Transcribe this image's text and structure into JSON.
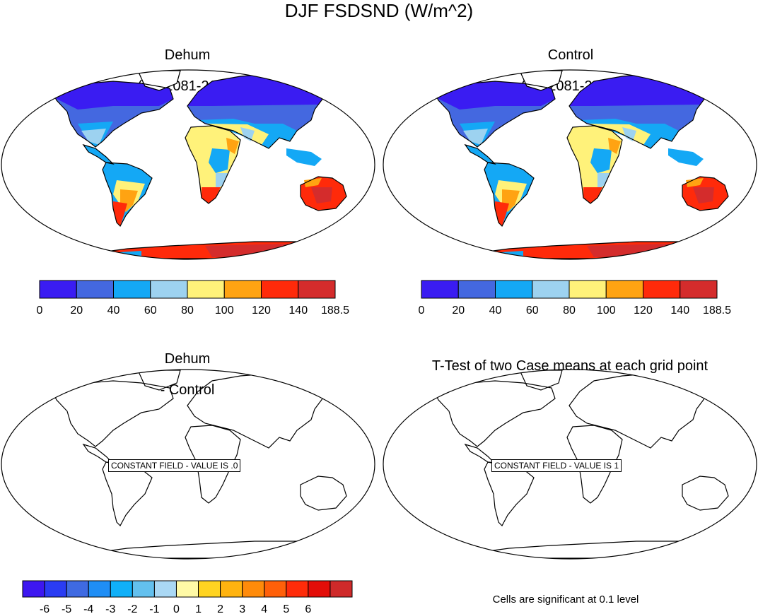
{
  "figure": {
    "title": "DJF FSDSND (W/m^2)"
  },
  "panels": [
    {
      "id": "dehum",
      "title_line1": "Dehum",
      "title_line2": "(yrs 2081-2100)"
    },
    {
      "id": "control",
      "title_line1": "Control",
      "title_line2": "(yrs 2081-2100)"
    },
    {
      "id": "difference",
      "title_line1": "Dehum",
      "title_line2": "- Control",
      "message": "CONSTANT FIELD - VALUE IS .0"
    },
    {
      "id": "ttest",
      "title_line1": "T-Test of two Case means at each grid point",
      "title_line2": "",
      "message": "CONSTANT FIELD - VALUE IS 1"
    }
  ],
  "colorbars": {
    "absolute": {
      "colors": [
        "#3a1cf2",
        "#4468e0",
        "#14a8f5",
        "#9dd2f0",
        "#fff27a",
        "#ffa312",
        "#ff2a0a",
        "#d42c2c"
      ],
      "labels": [
        "0",
        "20",
        "40",
        "60",
        "80",
        "100",
        "120",
        "140",
        "188.5"
      ]
    },
    "difference": {
      "colors": [
        "#3d17f0",
        "#2a3cf3",
        "#3f6ae2",
        "#1f8ef5",
        "#10b0f8",
        "#63c0ee",
        "#aad8f4",
        "#fffaa6",
        "#ffd421",
        "#ffb30f",
        "#ff8b0a",
        "#ff6009",
        "#ff2c0a",
        "#e30d08",
        "#cf2a2a"
      ],
      "labels": [
        "-6",
        "-5",
        "-4",
        "-3",
        "-2",
        "-1",
        "0",
        "1",
        "2",
        "3",
        "4",
        "5",
        "6"
      ]
    }
  },
  "footnote": "Cells are significant at 0.1 level",
  "chart_data": [
    {
      "type": "heatmap",
      "title": "Dehum (yrs 2081-2100)",
      "variable": "FSDSND",
      "season": "DJF",
      "units": "W/m^2",
      "projection": "Robinson",
      "levels": [
        0,
        20,
        40,
        60,
        80,
        100,
        120,
        140,
        188.5
      ]
    },
    {
      "type": "heatmap",
      "title": "Control (yrs 2081-2100)",
      "variable": "FSDSND",
      "season": "DJF",
      "units": "W/m^2",
      "projection": "Robinson",
      "levels": [
        0,
        20,
        40,
        60,
        80,
        100,
        120,
        140,
        188.5
      ]
    },
    {
      "type": "heatmap",
      "title": "Dehum - Control",
      "constant_value": 0,
      "levels": [
        -6,
        -5,
        -4,
        -3,
        -2,
        -1,
        0,
        1,
        2,
        3,
        4,
        5,
        6
      ]
    },
    {
      "type": "heatmap",
      "title": "T-Test of two Case means at each grid point",
      "constant_value": 1
    }
  ]
}
